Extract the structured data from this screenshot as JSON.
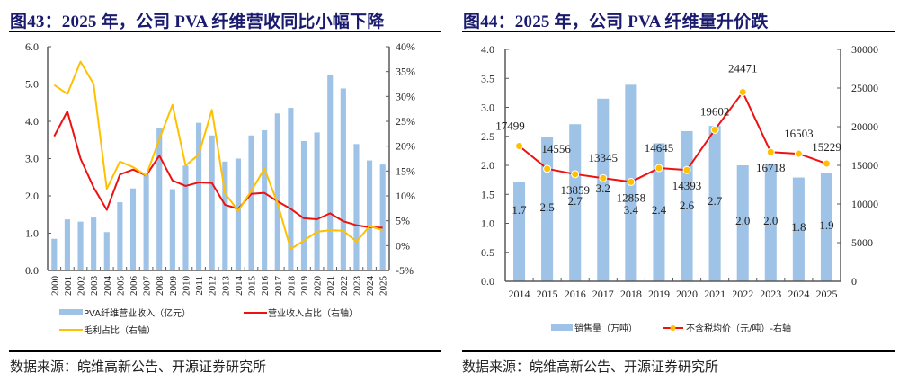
{
  "source_text": "数据来源：皖维高新公告、开源证券研究所",
  "colors": {
    "bar": "#9fc3e6",
    "red_line": "#ee1111",
    "yellow_line": "#ffc000",
    "marker": "#ffc000",
    "title": "#1a1a6e",
    "axis": "#595959"
  },
  "chart_data": [
    {
      "id": "fig43",
      "type": "bar+line",
      "title": "图43：2025 年，公司 PVA 纤维营收同比小幅下降",
      "categories": [
        "2000",
        "2001",
        "2002",
        "2003",
        "2004",
        "2005",
        "2006",
        "2007",
        "2008",
        "2009",
        "2010",
        "2011",
        "2012",
        "2013",
        "2014",
        "2015",
        "2016",
        "2017",
        "2018",
        "2019",
        "2020",
        "2021",
        "2022",
        "2023",
        "2024",
        "2025"
      ],
      "left_axis": {
        "ylim": [
          0,
          6
        ],
        "ticks": [
          "0.0",
          "1.0",
          "2.0",
          "3.0",
          "4.0",
          "5.0",
          "6.0"
        ]
      },
      "right_axis": {
        "ylim": [
          -5,
          40
        ],
        "ticks": [
          "-5%",
          "0%",
          "5%",
          "10%",
          "15%",
          "20%",
          "25%",
          "30%",
          "35%",
          "40%"
        ]
      },
      "series": [
        {
          "name": "PVA纤维营业收入（亿元）",
          "type": "bar",
          "axis": "left",
          "values": [
            0.85,
            1.37,
            1.31,
            1.42,
            1.03,
            1.83,
            2.2,
            2.57,
            3.82,
            2.18,
            2.81,
            3.96,
            3.62,
            2.92,
            3.0,
            3.62,
            3.76,
            4.21,
            4.36,
            3.47,
            3.7,
            5.23,
            4.88,
            3.39,
            2.95,
            2.84
          ]
        },
        {
          "name": "营业收入占比（右轴）",
          "type": "line",
          "axis": "right",
          "color_key": "red_line",
          "values": [
            22.0,
            27.0,
            17.5,
            11.7,
            7.2,
            14.3,
            15.3,
            14.1,
            18.1,
            13.1,
            12.0,
            12.7,
            12.6,
            8.2,
            7.4,
            10.4,
            10.6,
            8.9,
            7.4,
            5.5,
            5.3,
            6.5,
            4.9,
            4.1,
            3.7,
            3.6
          ]
        },
        {
          "name": "毛利占比（右轴）",
          "type": "line",
          "axis": "right",
          "color_key": "yellow_line",
          "values": [
            32.3,
            30.5,
            37.0,
            32.5,
            11.4,
            16.9,
            15.8,
            14.1,
            21.4,
            28.3,
            16.1,
            18.3,
            27.3,
            10.5,
            7.0,
            11.0,
            15.5,
            8.5,
            -0.7,
            1.0,
            2.8,
            3.1,
            3.0,
            0.8,
            3.9,
            3.1
          ]
        }
      ],
      "legend": [
        "PVA纤维营业收入（亿元）",
        "营业收入占比（右轴）",
        "毛利占比（右轴）"
      ],
      "legend_position": "bottom"
    },
    {
      "id": "fig44",
      "type": "bar+line",
      "title": "图44：2025 年，公司 PVA 纤维量升价跌",
      "categories": [
        "2014",
        "2015",
        "2016",
        "2017",
        "2018",
        "2019",
        "2020",
        "2021",
        "2022",
        "2023",
        "2024",
        "2025"
      ],
      "left_axis": {
        "ylim": [
          0,
          4
        ],
        "ticks": [
          "0.0",
          "0.5",
          "1.0",
          "1.5",
          "2.0",
          "2.5",
          "3.0",
          "3.5",
          "4.0"
        ]
      },
      "right_axis": {
        "ylim": [
          0,
          30000
        ],
        "ticks": [
          "0",
          "5000",
          "10000",
          "15000",
          "20000",
          "25000",
          "30000"
        ]
      },
      "series": [
        {
          "name": "销售量（万吨）",
          "type": "bar",
          "axis": "left",
          "values": [
            1.72,
            2.49,
            2.71,
            3.15,
            3.39,
            2.38,
            2.59,
            2.68,
            2.0,
            2.03,
            1.79,
            1.87
          ],
          "labels": [
            "1.7",
            "2.5",
            "2.7",
            "3.2",
            "3.4",
            "2.4",
            "2.6",
            "2.7",
            "2.0",
            "2.0",
            "1.8",
            "1.9"
          ]
        },
        {
          "name": "不含税均价（元/吨）-右轴",
          "type": "line",
          "axis": "right",
          "color_key": "red_line",
          "marker": true,
          "values": [
            17499,
            14556,
            13859,
            13345,
            12858,
            14645,
            14393,
            19602,
            24471,
            16718,
            16503,
            15229
          ],
          "labels": [
            "17499",
            "14556",
            "13859",
            "13345",
            "12858",
            "14645",
            "14393",
            "19602",
            "24471",
            "16718",
            "16503",
            "15229"
          ]
        }
      ],
      "legend": [
        "销售量（万吨）",
        "不含税均价（元/吨）-右轴"
      ],
      "legend_position": "bottom"
    }
  ]
}
